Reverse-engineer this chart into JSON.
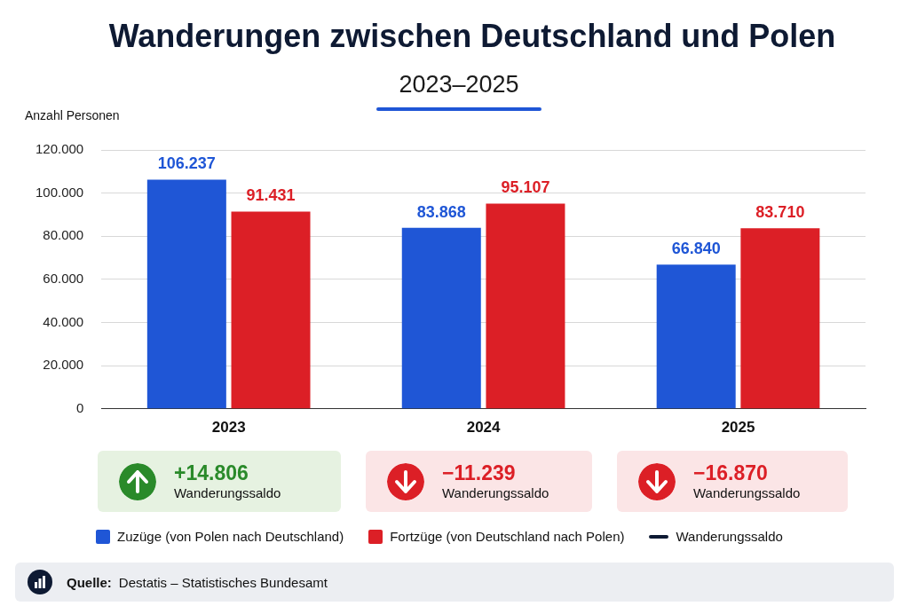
{
  "chart_data": {
    "type": "bar",
    "title": "Wanderungen zwischen Deutschland und Polen",
    "subtitle": "2023–2025",
    "ylabel": "Anzahl Personen",
    "categories": [
      "2023",
      "2024",
      "2025"
    ],
    "series": [
      {
        "name": "Zuzüge (von Polen nach Deutschland)",
        "color": "#1f56d6",
        "values": [
          106237,
          83868,
          66840
        ],
        "value_labels": [
          "106.237",
          "83.868",
          "66.840"
        ]
      },
      {
        "name": "Fortzüge (von Deutschland nach Polen)",
        "color": "#dc1f26",
        "values": [
          91431,
          95107,
          83710
        ],
        "value_labels": [
          "91.431",
          "95.107",
          "83.710"
        ]
      }
    ],
    "ylim": [
      0,
      120000
    ],
    "yticks": [
      0,
      {
        "value": 20000,
        "label": "20.000"
      },
      {
        "value": 40000,
        "label": "40.000"
      },
      {
        "value": 60000,
        "label": "60.000"
      },
      {
        "value": 80000,
        "label": "80.000"
      },
      {
        "value": 100000,
        "label": "100.000"
      },
      {
        "value": 120000,
        "label": "120.000"
      }
    ],
    "grid": "y",
    "legend": "bottom",
    "annotations": [
      "+14.806",
      "Wanderungssaldo",
      "−11.239",
      "Wanderungssaldo",
      "−16.870",
      "Wanderungssaldo",
      "Wanderungssaldo",
      "Quelle: Destatis – Statistisches Bundesamt"
    ]
  }
}
